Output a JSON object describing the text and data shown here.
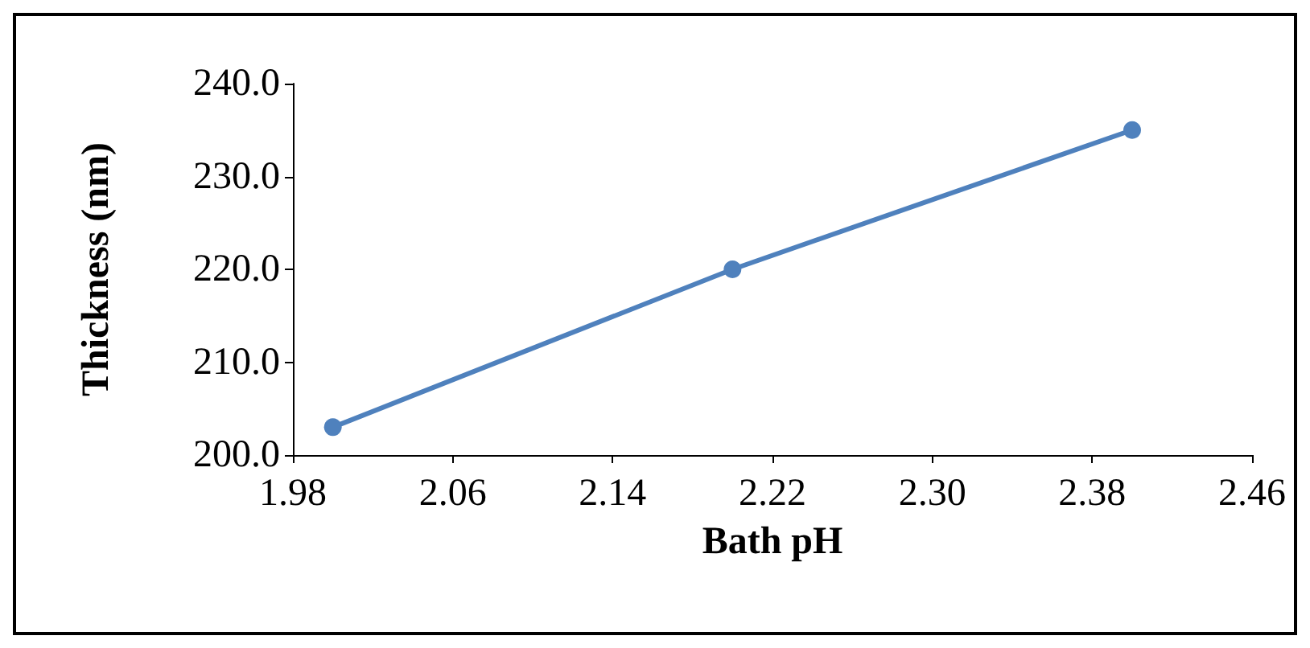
{
  "chart_data": {
    "type": "line",
    "xlabel": "Bath pH",
    "ylabel": "Thickness (nm)",
    "x": [
      2.0,
      2.2,
      2.4
    ],
    "series": [
      {
        "color": "#4f81bd",
        "values": [
          203,
          220,
          235
        ]
      }
    ],
    "xlim": [
      1.98,
      2.46
    ],
    "xticks": [
      {
        "value": 1.98,
        "label": "1.98"
      },
      {
        "value": 2.06,
        "label": "2.06"
      },
      {
        "value": 2.14,
        "label": "2.14"
      },
      {
        "value": 2.22,
        "label": "2.22"
      },
      {
        "value": 2.3,
        "label": "2.30"
      },
      {
        "value": 2.38,
        "label": "2.38"
      },
      {
        "value": 2.46,
        "label": "2.46"
      }
    ],
    "ylim": [
      200,
      240
    ],
    "yticks": [
      {
        "value": 200,
        "label": "200.0"
      },
      {
        "value": 210,
        "label": "210.0"
      },
      {
        "value": 220,
        "label": "220.0"
      },
      {
        "value": 230,
        "label": "230.0"
      },
      {
        "value": 240,
        "label": "240.0"
      }
    ],
    "grid": false,
    "marker": "circle",
    "line_style": "solid"
  }
}
